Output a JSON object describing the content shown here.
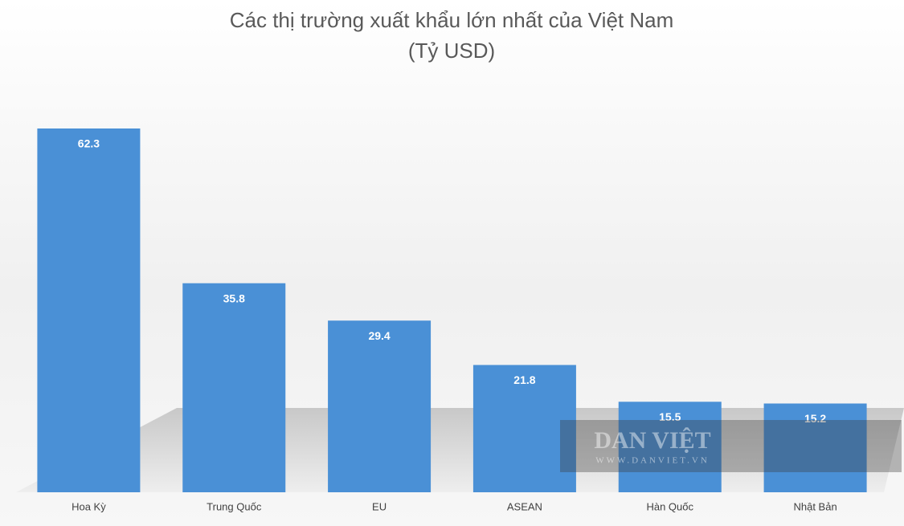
{
  "chart_data": {
    "type": "bar",
    "title": "Các thị trường xuất khẩu lớn nhất của Việt Nam",
    "subtitle": "(Tỷ USD)",
    "categories": [
      "Hoa Kỳ",
      "Trung Quốc",
      "EU",
      "ASEAN",
      "Hàn Quốc",
      "Nhật Bản"
    ],
    "values": [
      62.3,
      35.8,
      29.4,
      21.8,
      15.5,
      15.2
    ],
    "color": "#4a90d6",
    "watermark": {
      "title": "DAN VIỆT",
      "url": "WWW.DANVIET.VN"
    }
  }
}
